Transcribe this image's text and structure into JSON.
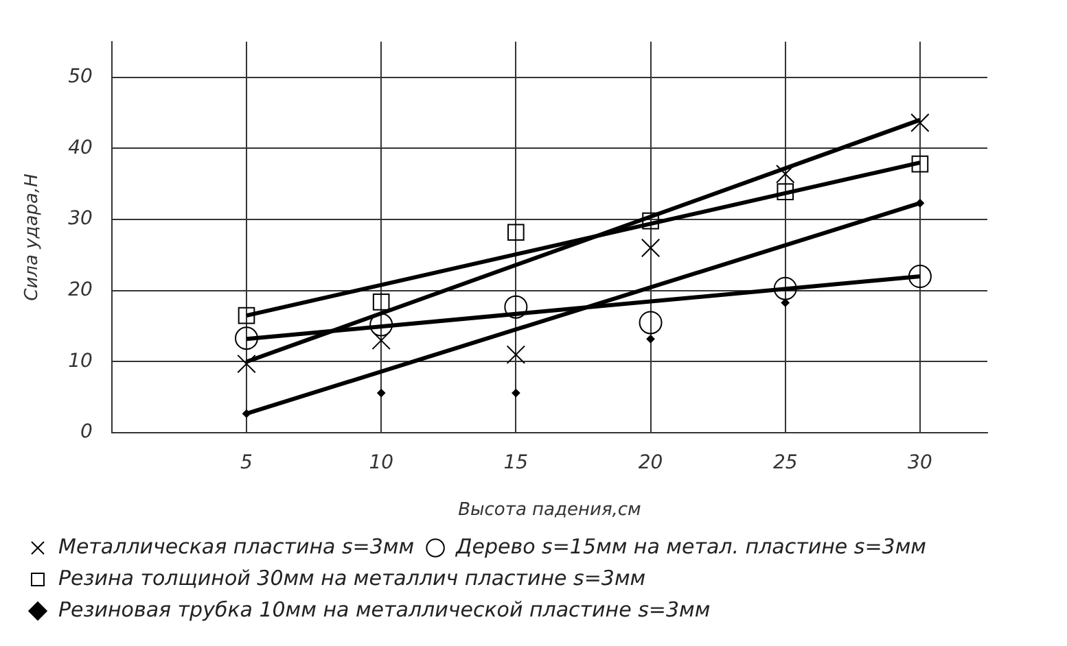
{
  "chart_data": {
    "type": "scatter",
    "xlabel": "Высота падения,см",
    "ylabel": "Сила удара,Н",
    "xlim": [
      0,
      32.5
    ],
    "ylim": [
      0,
      55
    ],
    "xticks": [
      5,
      10,
      15,
      20,
      25,
      30
    ],
    "yticks": [
      0,
      10,
      20,
      30,
      40,
      50
    ],
    "grid": true,
    "legend": "bottom",
    "series": [
      {
        "name": "Металлическая пластина s=3мм",
        "type": "scatter",
        "marker": "cross",
        "color": "#000000",
        "x": [
          5,
          10,
          15,
          20,
          25,
          30
        ],
        "values": [
          9.7,
          13,
          11,
          26,
          36.4,
          43.6
        ]
      },
      {
        "name": "Дерево s=15мм на метал. пластине s=3мм",
        "type": "scatter",
        "marker": "circle",
        "color": "#000000",
        "x": [
          5,
          10,
          15,
          20,
          25,
          30
        ],
        "values": [
          13.3,
          15.2,
          17.7,
          15.5,
          20.3,
          22
        ]
      },
      {
        "name": "Резина толщиной 30мм на металлич пластине s=3мм",
        "type": "scatter",
        "marker": "square",
        "color": "#000000",
        "x": [
          5,
          10,
          15,
          20,
          25,
          30
        ],
        "values": [
          16.5,
          18.4,
          28.2,
          29.8,
          33.9,
          37.8
        ]
      },
      {
        "name": "Резиновая трубка 10мм на металлической пластине s=3мм",
        "type": "scatter",
        "marker": "diamond",
        "color": "#000000",
        "x": [
          5,
          10,
          15,
          20,
          25,
          30
        ],
        "values": [
          2.7,
          5.6,
          5.6,
          13.2,
          18.3,
          32.3
        ]
      },
      {
        "type": "line",
        "marker": "none",
        "line_style": "solid",
        "color": "#000000",
        "x": [
          5,
          30
        ],
        "values": [
          10,
          44
        ]
      },
      {
        "type": "line",
        "marker": "none",
        "line_style": "solid",
        "color": "#000000",
        "x": [
          5,
          30
        ],
        "values": [
          13.2,
          22
        ]
      },
      {
        "type": "line",
        "marker": "none",
        "line_style": "solid",
        "color": "#000000",
        "x": [
          5,
          30
        ],
        "values": [
          16.5,
          38
        ]
      },
      {
        "type": "line",
        "marker": "none",
        "line_style": "solid",
        "color": "#000000",
        "x": [
          5,
          30
        ],
        "values": [
          2.7,
          32.3
        ]
      }
    ]
  }
}
